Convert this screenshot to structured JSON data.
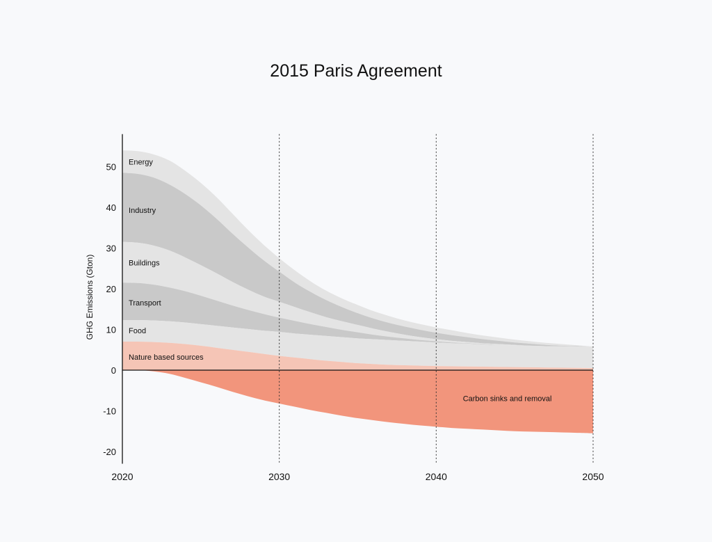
{
  "chart_data": {
    "type": "area",
    "title": "2015 Paris Agreement",
    "xlabel": "",
    "ylabel": "GHG Emissions (Gton)",
    "xlim": [
      2020,
      2050
    ],
    "ylim": [
      -23,
      58
    ],
    "x_ticks": [
      2020,
      2030,
      2040,
      2050
    ],
    "y_ticks": [
      50,
      40,
      30,
      20,
      10,
      0,
      -10,
      -20
    ],
    "x_ticks_labels": [
      "2020",
      "2030",
      "2040",
      "2050"
    ],
    "y_ticks_labels": [
      "50",
      "40",
      "30",
      "20",
      "10",
      "0",
      "-10",
      "-20"
    ],
    "grid": "vertical dotted lines at 2030, 2040, 2050",
    "x": [
      2020,
      2021,
      2022,
      2023,
      2024,
      2025,
      2026,
      2027,
      2028,
      2029,
      2030,
      2031,
      2032,
      2033,
      2034,
      2035,
      2036,
      2037,
      2038,
      2039,
      2040,
      2041,
      2042,
      2043,
      2044,
      2045,
      2046,
      2047,
      2048,
      2049,
      2050
    ],
    "series": [
      {
        "name": "Energy",
        "color": "#e4e4e4",
        "baseline": "Industry",
        "top": [
          54,
          53.8,
          53,
          51.5,
          49,
          46,
          42.5,
          38.5,
          34.5,
          30.8,
          27.5,
          24.5,
          21.8,
          19.5,
          17.6,
          16,
          14.5,
          13.3,
          12.2,
          11.3,
          10.5,
          9.8,
          9.1,
          8.5,
          8,
          7.5,
          7.1,
          6.7,
          6.4,
          6.1,
          5.8
        ]
      },
      {
        "name": "Industry",
        "color": "#c9c9c9",
        "baseline": "Buildings",
        "top": [
          48.5,
          48.2,
          47.3,
          45.6,
          43.3,
          40.5,
          37.2,
          33.6,
          30.2,
          27,
          24.2,
          21.5,
          19.2,
          17.2,
          15.5,
          14,
          12.7,
          11.6,
          10.7,
          9.9,
          9.2,
          8.6,
          8.1,
          7.6,
          7.2,
          6.8,
          6.5,
          6.2,
          6,
          5.9,
          5.8
        ]
      },
      {
        "name": "Buildings",
        "color": "#e4e4e4",
        "baseline": "Transport",
        "top": [
          31.5,
          31.3,
          30.6,
          29.4,
          27.7,
          25.8,
          23.8,
          21.7,
          19.8,
          18.1,
          16.8,
          15.5,
          14.2,
          13,
          12,
          11.1,
          10.2,
          9.4,
          8.7,
          8.1,
          7.6,
          7.2,
          6.9,
          6.6,
          6.4,
          6.2,
          6,
          5.9,
          5.85,
          5.82,
          5.8
        ]
      },
      {
        "name": "Transport",
        "color": "#c9c9c9",
        "baseline": "Food",
        "top": [
          21.5,
          21.4,
          21,
          20.3,
          19.4,
          18.3,
          17.1,
          15.9,
          14.8,
          13.8,
          12.9,
          12.1,
          11.3,
          10.6,
          9.9,
          9.3,
          8.7,
          8.2,
          7.8,
          7.4,
          7.1,
          6.8,
          6.6,
          6.4,
          6.25,
          6.1,
          6,
          5.9,
          5.85,
          5.82,
          5.8
        ]
      },
      {
        "name": "Food",
        "color": "#e4e4e4",
        "baseline": "Nature based sources",
        "top": [
          12.3,
          12.3,
          12.2,
          12,
          11.7,
          11.3,
          10.9,
          10.5,
          10.1,
          9.7,
          9.4,
          9,
          8.7,
          8.4,
          8.1,
          7.8,
          7.6,
          7.4,
          7.2,
          7,
          6.8,
          6.6,
          6.5,
          6.3,
          6.2,
          6.1,
          6,
          5.9,
          5.85,
          5.82,
          5.8
        ]
      },
      {
        "name": "Nature based sources",
        "color": "#f5c5b6",
        "baseline": "zero",
        "top": [
          7,
          7,
          6.9,
          6.7,
          6.4,
          6,
          5.5,
          5,
          4.5,
          4,
          3.5,
          3.1,
          2.7,
          2.3,
          2,
          1.7,
          1.5,
          1.3,
          1.2,
          1.1,
          1,
          0.95,
          0.9,
          0.85,
          0.8,
          0.75,
          0.7,
          0.65,
          0.6,
          0.55,
          0.5
        ]
      },
      {
        "name": "Carbon sinks and removal",
        "color": "#f2957c",
        "baseline": "zero",
        "top": [
          0,
          0,
          -0.3,
          -0.9,
          -1.9,
          -3,
          -4.1,
          -5.3,
          -6.4,
          -7.4,
          -8.2,
          -9,
          -9.8,
          -10.5,
          -11.2,
          -11.8,
          -12.3,
          -12.8,
          -13.2,
          -13.6,
          -13.9,
          -14.2,
          -14.4,
          -14.6,
          -14.8,
          -15,
          -15.1,
          -15.2,
          -15.3,
          -15.4,
          -15.5
        ]
      }
    ],
    "annotations": [
      {
        "text": "Energy",
        "x": 2020.4,
        "y": 50.5
      },
      {
        "text": "Industry",
        "x": 2020.4,
        "y": 38.6
      },
      {
        "text": "Buildings",
        "x": 2020.4,
        "y": 25.7
      },
      {
        "text": "Transport",
        "x": 2020.4,
        "y": 15.9
      },
      {
        "text": "Food",
        "x": 2020.4,
        "y": 9.1
      },
      {
        "text": "Nature based sources",
        "x": 2020.4,
        "y": 2.6
      },
      {
        "text": "Carbon sinks and removal",
        "x": 2041.7,
        "y": -7.6
      }
    ]
  }
}
